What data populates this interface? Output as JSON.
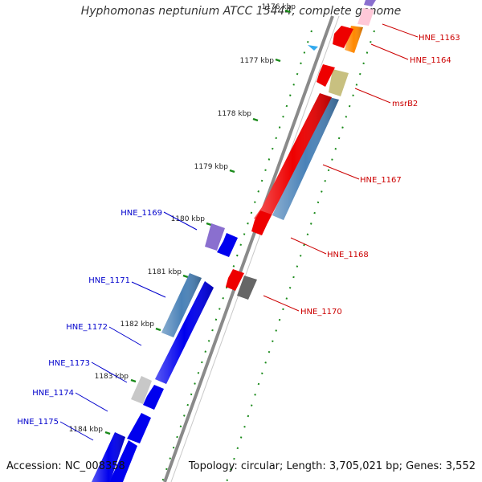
{
  "title": "Hyphomonas neptunium ATCC 15444, complete genome",
  "footer": {
    "accession_label": "Accession:",
    "accession": "NC_008358",
    "topology_text": "Topology: circular; Length: 3,705,021 bp; Genes: 3,552"
  },
  "ticks": [
    "1176 kbp",
    "1177 kbp",
    "1178 kbp",
    "1179 kbp",
    "1180 kbp",
    "1181 kbp",
    "1182 kbp",
    "1183 kbp",
    "1184 kbp"
  ],
  "genes": {
    "forward_strand": [
      {
        "name": "",
        "label_shown": false,
        "color": "#8a6fcf"
      },
      {
        "name": "HNE_1163",
        "label_shown": true,
        "color": "#ffc8d8"
      },
      {
        "name": "HNE_1164",
        "label_shown": true,
        "color": "#ff8800"
      },
      {
        "name": "msrB2",
        "label_shown": true,
        "color": "#c8c080"
      },
      {
        "name": "HNE_1167",
        "label_shown": true,
        "color": "#4a82b8"
      },
      {
        "name": "HNE_1170",
        "label_shown": true,
        "color": "#666666"
      }
    ],
    "reverse_strand": [
      {
        "name": "",
        "label_shown": false,
        "color": "#ee0000"
      },
      {
        "name": "",
        "label_shown": false,
        "color": "#ee0000"
      },
      {
        "name": "HNE_1168",
        "label_shown": true,
        "color": "#ee0000"
      },
      {
        "name": "",
        "label_shown": false,
        "color": "#ee0000"
      }
    ],
    "left_group": [
      {
        "name": "HNE_1169",
        "label_shown": true,
        "color": "#8a6fcf"
      },
      {
        "name": "",
        "label_shown": false,
        "color": "#0000ee"
      },
      {
        "name": "HNE_1171",
        "label_shown": true,
        "color": "#4a82b8"
      },
      {
        "name": "HNE_1172",
        "label_shown": true,
        "color": "#0000ee"
      },
      {
        "name": "HNE_1173",
        "label_shown": true,
        "color": "#c8c8c8"
      },
      {
        "name": "HNE_1174",
        "label_shown": true,
        "color": "#0000ee"
      },
      {
        "name": "HNE_1175",
        "label_shown": true,
        "color": "#0000ee"
      },
      {
        "name": "",
        "label_shown": false,
        "color": "#0000ee"
      }
    ]
  },
  "colors": {
    "backbone": "#888888",
    "tick_dots": "#1a8a1a",
    "forward_label": "#cc0000",
    "reverse_label": "#0000cc",
    "marker": "#33aaee"
  }
}
